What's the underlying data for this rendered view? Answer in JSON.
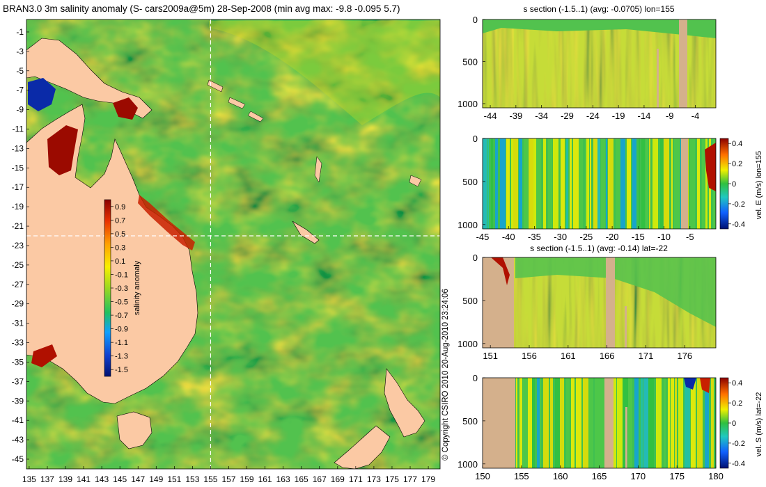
{
  "chart_data": [
    {
      "type": "heatmap",
      "panel": "map",
      "title": "BRAN3.0 3m salinity anomaly (S- cars2009a@5m) 28-Sep-2008 (min avg max: -9.8 -0.095 5.7)",
      "x_ticks": [
        "135",
        "137",
        "139",
        "141",
        "143",
        "145",
        "147",
        "149",
        "151",
        "153",
        "155",
        "157",
        "159",
        "161",
        "163",
        "165",
        "167",
        "169",
        "171",
        "173",
        "175",
        "177",
        "179"
      ],
      "y_ticks": [
        "-1",
        "-3",
        "-5",
        "-7",
        "-9",
        "-11",
        "-13",
        "-15",
        "-17",
        "-19",
        "-21",
        "-23",
        "-25",
        "-27",
        "-29",
        "-31",
        "-33",
        "-35",
        "-37",
        "-39",
        "-41",
        "-43",
        "-45"
      ],
      "xlim": [
        134.7,
        180.3
      ],
      "ylim": [
        -45,
        0
      ],
      "crosshair": {
        "lon": 155,
        "lat": -22
      },
      "stats": {
        "min": -9.8,
        "avg": -0.095,
        "max": 5.7
      },
      "colorbar": {
        "label": "salinity anomaly",
        "ticks": [
          "0.9",
          "0.7",
          "0.5",
          "0.3",
          "0.1",
          "-0.1",
          "-0.3",
          "-0.5",
          "-0.7",
          "-0.9",
          "-1.1",
          "-1.3",
          "-1.5"
        ],
        "range": [
          -1.6,
          1.0
        ]
      }
    },
    {
      "type": "heatmap",
      "panel": "section-1",
      "title": "s section (-1.5..1) (avg: -0.0705) lon=155",
      "x_ticks": [
        "-44",
        "-39",
        "-34",
        "-29",
        "-24",
        "-19",
        "-14",
        "-9",
        "-4"
      ],
      "xlim": [
        -45.5,
        0
      ],
      "y_ticks": [
        "0",
        "500",
        "1000"
      ],
      "ylim": [
        0,
        1050
      ]
    },
    {
      "type": "heatmap",
      "panel": "section-2",
      "title": "",
      "x_ticks": [
        "-45",
        "-40",
        "-35",
        "-30",
        "-25",
        "-20",
        "-15",
        "-10",
        "-5"
      ],
      "xlim": [
        -45,
        0
      ],
      "y_ticks": [
        "0",
        "500",
        "1000"
      ],
      "ylim": [
        0,
        1050
      ],
      "colorbar": {
        "label": "vel. E (m/s) lon=155",
        "ticks": [
          "0.4",
          "0.2",
          "0",
          "-0.2",
          "-0.4"
        ],
        "range": [
          -0.45,
          0.45
        ]
      }
    },
    {
      "type": "heatmap",
      "panel": "section-3",
      "title": "s section (-1.5..1) (avg: -0.14) lat=-22",
      "x_ticks": [
        "151",
        "156",
        "161",
        "166",
        "171",
        "176"
      ],
      "xlim": [
        150,
        180
      ],
      "y_ticks": [
        "0",
        "500",
        "1000"
      ],
      "ylim": [
        0,
        1050
      ]
    },
    {
      "type": "heatmap",
      "panel": "section-4",
      "title": "",
      "x_ticks": [
        "150",
        "155",
        "160",
        "165",
        "170",
        "175",
        "180"
      ],
      "xlim": [
        150,
        180
      ],
      "y_ticks": [
        "0",
        "500",
        "1000"
      ],
      "ylim": [
        0,
        1050
      ],
      "colorbar": {
        "label": "vel. S (m/s) lat=-22",
        "ticks": [
          "0.4",
          "0.2",
          "0",
          "-0.2",
          "-0.4"
        ],
        "range": [
          -0.45,
          0.45
        ]
      }
    }
  ],
  "copyright": "© Copyright CSIRO 2010   20-Aug-2010 23:24:06",
  "colors": {
    "land": "#fbc9a4",
    "section_land": "#d4b08c",
    "ocean_base": "#52c24e",
    "high": "#9b0a00",
    "low": "#001a8c"
  }
}
